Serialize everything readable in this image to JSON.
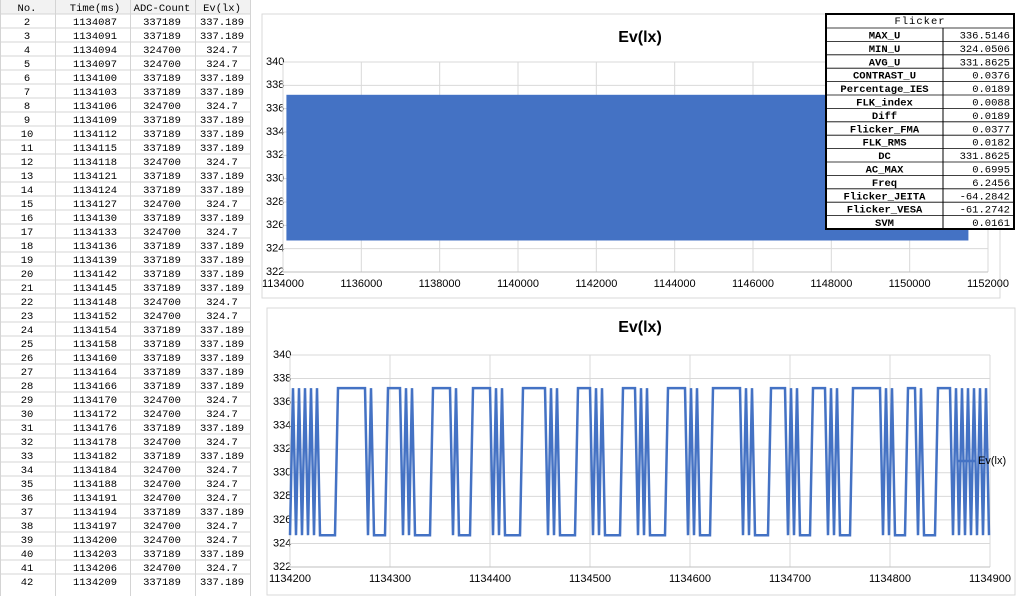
{
  "spreadsheet": {
    "headers": [
      "No.",
      "Time(ms)",
      "ADC-Count",
      "Ev(lx)"
    ],
    "rows": [
      [
        "2",
        "1134087",
        "337189",
        "337.189"
      ],
      [
        "3",
        "1134091",
        "337189",
        "337.189"
      ],
      [
        "4",
        "1134094",
        "324700",
        "324.7"
      ],
      [
        "5",
        "1134097",
        "324700",
        "324.7"
      ],
      [
        "6",
        "1134100",
        "337189",
        "337.189"
      ],
      [
        "7",
        "1134103",
        "337189",
        "337.189"
      ],
      [
        "8",
        "1134106",
        "324700",
        "324.7"
      ],
      [
        "9",
        "1134109",
        "337189",
        "337.189"
      ],
      [
        "10",
        "1134112",
        "337189",
        "337.189"
      ],
      [
        "11",
        "1134115",
        "337189",
        "337.189"
      ],
      [
        "12",
        "1134118",
        "324700",
        "324.7"
      ],
      [
        "13",
        "1134121",
        "337189",
        "337.189"
      ],
      [
        "14",
        "1134124",
        "337189",
        "337.189"
      ],
      [
        "15",
        "1134127",
        "324700",
        "324.7"
      ],
      [
        "16",
        "1134130",
        "337189",
        "337.189"
      ],
      [
        "17",
        "1134133",
        "324700",
        "324.7"
      ],
      [
        "18",
        "1134136",
        "337189",
        "337.189"
      ],
      [
        "19",
        "1134139",
        "337189",
        "337.189"
      ],
      [
        "20",
        "1134142",
        "337189",
        "337.189"
      ],
      [
        "21",
        "1134145",
        "337189",
        "337.189"
      ],
      [
        "22",
        "1134148",
        "324700",
        "324.7"
      ],
      [
        "23",
        "1134152",
        "324700",
        "324.7"
      ],
      [
        "24",
        "1134154",
        "337189",
        "337.189"
      ],
      [
        "25",
        "1134158",
        "337189",
        "337.189"
      ],
      [
        "26",
        "1134160",
        "337189",
        "337.189"
      ],
      [
        "27",
        "1134164",
        "337189",
        "337.189"
      ],
      [
        "28",
        "1134166",
        "337189",
        "337.189"
      ],
      [
        "29",
        "1134170",
        "324700",
        "324.7"
      ],
      [
        "30",
        "1134172",
        "324700",
        "324.7"
      ],
      [
        "31",
        "1134176",
        "337189",
        "337.189"
      ],
      [
        "32",
        "1134178",
        "324700",
        "324.7"
      ],
      [
        "33",
        "1134182",
        "337189",
        "337.189"
      ],
      [
        "34",
        "1134184",
        "324700",
        "324.7"
      ],
      [
        "35",
        "1134188",
        "324700",
        "324.7"
      ],
      [
        "36",
        "1134191",
        "324700",
        "324.7"
      ],
      [
        "37",
        "1134194",
        "337189",
        "337.189"
      ],
      [
        "38",
        "1134197",
        "324700",
        "324.7"
      ],
      [
        "39",
        "1134200",
        "324700",
        "324.7"
      ],
      [
        "40",
        "1134203",
        "337189",
        "337.189"
      ],
      [
        "41",
        "1134206",
        "324700",
        "324.7"
      ],
      [
        "42",
        "1134209",
        "337189",
        "337.189"
      ]
    ]
  },
  "flicker": {
    "title": "Flicker",
    "rows": [
      [
        "MAX_U",
        "336.5146"
      ],
      [
        "MIN_U",
        "324.0506"
      ],
      [
        "AVG_U",
        "331.8625"
      ],
      [
        "CONTRAST_U",
        "0.0376"
      ],
      [
        "Percentage_IES",
        "0.0189"
      ],
      [
        "FLK_index",
        "0.0088"
      ],
      [
        "Diff",
        "0.0189"
      ],
      [
        "Flicker_FMA",
        "0.0377"
      ],
      [
        "FLK_RMS",
        "0.0182"
      ],
      [
        "DC",
        "331.8625"
      ],
      [
        "AC_MAX",
        "0.6995"
      ],
      [
        "Freq",
        "6.2456"
      ],
      [
        "Flicker_JEITA",
        "-64.2842"
      ],
      [
        "Flicker_VESA",
        "-61.2742"
      ],
      [
        "SVM",
        "0.0161"
      ]
    ]
  },
  "chart_data": [
    {
      "type": "band",
      "title": "Ev(lx)",
      "x": [
        1134087,
        1151500
      ],
      "low": 324.7,
      "high": 337.189,
      "color": "#4472c4",
      "xlim": [
        1134000,
        1152000
      ],
      "xticks": [
        1134000,
        1136000,
        1138000,
        1140000,
        1142000,
        1144000,
        1146000,
        1148000,
        1150000,
        1152000
      ],
      "ylim": [
        322,
        340
      ],
      "yticks": [
        322,
        324,
        326,
        328,
        330,
        332,
        334,
        336,
        338,
        340
      ],
      "grid": true
    },
    {
      "type": "line",
      "title": "Ev(lx)",
      "legend": "right",
      "x": [
        1134200,
        1134203,
        1134206,
        1134209,
        1134212,
        1134215,
        1134218,
        1134221,
        1134224,
        1134227,
        1134230,
        1134245,
        1134248,
        1134275,
        1134278,
        1134281,
        1134284,
        1134295,
        1134298,
        1134310,
        1134313,
        1134316,
        1134319,
        1134322,
        1134325,
        1134340,
        1134343,
        1134360,
        1134363,
        1134366,
        1134369,
        1134380,
        1134383,
        1134400,
        1134403,
        1134406,
        1134409,
        1134412,
        1134415,
        1134430,
        1134433,
        1134455,
        1134458,
        1134461,
        1134464,
        1134467,
        1134470,
        1134485,
        1134488,
        1134500,
        1134503,
        1134506,
        1134509,
        1134512,
        1134515,
        1134530,
        1134533,
        1134545,
        1134548,
        1134551,
        1134554,
        1134557,
        1134560,
        1134575,
        1134578,
        1134595,
        1134598,
        1134601,
        1134604,
        1134607,
        1134610,
        1134620,
        1134623,
        1134650,
        1134653,
        1134656,
        1134659,
        1134662,
        1134665,
        1134678,
        1134681,
        1134695,
        1134698,
        1134701,
        1134704,
        1134707,
        1134710,
        1134720,
        1134723,
        1134735,
        1134738,
        1134741,
        1134744,
        1134747,
        1134750,
        1134760,
        1134763,
        1134790,
        1134793,
        1134796,
        1134799,
        1134802,
        1134805,
        1134815,
        1134818,
        1134825,
        1134828,
        1134831,
        1134834,
        1134845,
        1134848,
        1134860,
        1134863,
        1134866,
        1134869,
        1134872,
        1134875,
        1134878,
        1134881,
        1134884,
        1134887,
        1134890,
        1134893,
        1134896,
        1134899
      ],
      "series": [
        {
          "name": "Ev(lx)",
          "color": "#4472c4",
          "values": [
            324.7,
            337.189,
            324.7,
            337.189,
            324.7,
            337.189,
            324.7,
            337.189,
            324.7,
            337.189,
            324.7,
            324.7,
            337.189,
            337.189,
            324.7,
            337.189,
            324.7,
            324.7,
            337.189,
            337.189,
            324.7,
            337.189,
            324.7,
            337.189,
            324.7,
            324.7,
            337.189,
            337.189,
            324.7,
            337.189,
            324.7,
            324.7,
            337.189,
            337.189,
            324.7,
            337.189,
            324.7,
            337.189,
            324.7,
            324.7,
            337.189,
            337.189,
            324.7,
            337.189,
            324.7,
            337.189,
            324.7,
            324.7,
            337.189,
            337.189,
            324.7,
            337.189,
            324.7,
            337.189,
            324.7,
            324.7,
            337.189,
            337.189,
            324.7,
            337.189,
            324.7,
            337.189,
            324.7,
            324.7,
            337.189,
            337.189,
            324.7,
            337.189,
            324.7,
            337.189,
            324.7,
            324.7,
            337.189,
            337.189,
            324.7,
            337.189,
            324.7,
            337.189,
            324.7,
            324.7,
            337.189,
            337.189,
            324.7,
            337.189,
            324.7,
            337.189,
            324.7,
            324.7,
            337.189,
            337.189,
            324.7,
            337.189,
            324.7,
            337.189,
            324.7,
            324.7,
            337.189,
            337.189,
            324.7,
            337.189,
            324.7,
            337.189,
            324.7,
            324.7,
            337.189,
            337.189,
            324.7,
            337.189,
            324.7,
            324.7,
            337.189,
            337.189,
            324.7,
            337.189,
            324.7,
            337.189,
            324.7,
            337.189,
            324.7,
            337.189,
            324.7,
            337.189,
            324.7,
            337.189,
            324.7
          ]
        }
      ],
      "xlim": [
        1134200,
        1134900
      ],
      "xticks": [
        1134200,
        1134300,
        1134400,
        1134500,
        1134600,
        1134700,
        1134800,
        1134900
      ],
      "ylim": [
        322,
        340
      ],
      "yticks": [
        322,
        324,
        326,
        328,
        330,
        332,
        334,
        336,
        338,
        340
      ],
      "grid": true
    }
  ]
}
